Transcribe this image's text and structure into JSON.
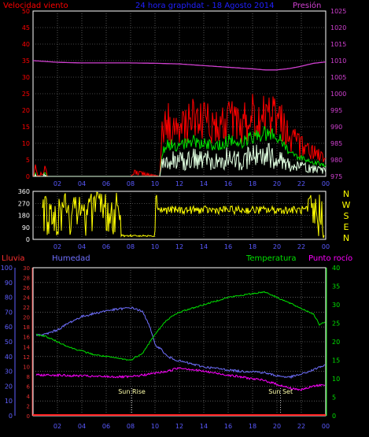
{
  "header": {
    "left_title": "Velocidad viento",
    "center_title": "24 hora graphdat - 18 Agosto 2014",
    "right_title": "Presión"
  },
  "colors": {
    "background": "#000000",
    "grid": "#8a8a8a",
    "frame": "#ffffff",
    "wind": "#ff0000",
    "gust_green": "#00e000",
    "wind_low": "#e0ffe0",
    "pressure": "#d040d0",
    "direction": "#ffff00",
    "humidity": "#7070ff",
    "temperature": "#00e000",
    "dewpoint": "#ff00ff",
    "rain": "#ff2020",
    "rain_axis": "#e03030",
    "humidity_axis": "#6060ff",
    "temp_axis": "#00e000",
    "sun_label": "#ffffaa"
  },
  "chart_data": [
    {
      "type": "line",
      "name": "wind-pressure",
      "title": "24 hora graphdat - 18 Agosto 2014",
      "ylabel_left": "Velocidad viento",
      "ylabel_right": "Presión",
      "x_ticks": [
        "02",
        "04",
        "06",
        "08",
        "10",
        "12",
        "14",
        "16",
        "18",
        "20",
        "22",
        "00"
      ],
      "y_left_ticks": [
        0,
        5,
        10,
        15,
        20,
        25,
        30,
        35,
        40,
        45,
        50
      ],
      "ylim_left": [
        0,
        50
      ],
      "y_right_ticks": [
        975,
        980,
        985,
        990,
        995,
        1000,
        1005,
        1010,
        1015,
        1020,
        1025
      ],
      "ylim_right": [
        975,
        1025
      ],
      "xlim": [
        0,
        24
      ],
      "pressure_series": {
        "x": [
          0,
          2,
          4,
          6,
          8,
          10,
          12,
          14,
          16,
          18,
          19,
          20,
          21,
          22,
          23,
          24
        ],
        "y": [
          1010,
          1009.5,
          1009.3,
          1009.3,
          1009.3,
          1009.2,
          1009,
          1008.5,
          1008,
          1007.5,
          1007.2,
          1007.2,
          1007.6,
          1008.3,
          1009.2,
          1009.6
        ]
      },
      "wind_note": "Wind data shown as noisy traces: near 0 from 00-10h except small spikes at ~00.2h, ~01h and ~08h; from ~10.5h to 24h gusts oscillating mostly 10-20 with peaks ~26",
      "wind_envelope": {
        "x": [
          0,
          0.2,
          0.4,
          1,
          1.2,
          8,
          8.2,
          10.4,
          10.6,
          11,
          12,
          13,
          14,
          15,
          16,
          17,
          18,
          19,
          20,
          21,
          22,
          23,
          24
        ],
        "gust": [
          0,
          3,
          0,
          3,
          0,
          0,
          2,
          0,
          17,
          18,
          16,
          19,
          18,
          17,
          19,
          17,
          20,
          21,
          22,
          14,
          10,
          8,
          6
        ],
        "avg": [
          0,
          1,
          0,
          1,
          0,
          0,
          1,
          0,
          7,
          9,
          8,
          10,
          9,
          8,
          10,
          9,
          11,
          12,
          11,
          7,
          5,
          4,
          3
        ]
      },
      "grid": true
    },
    {
      "type": "scatter",
      "name": "wind-direction",
      "y_left_ticks": [
        0,
        90,
        180,
        270,
        360
      ],
      "ylim": [
        0,
        360
      ],
      "right_labels": [
        "N",
        "W",
        "S",
        "E",
        "N"
      ],
      "x_ticks": [
        "02",
        "04",
        "06",
        "08",
        "10",
        "12",
        "14",
        "16",
        "18",
        "20",
        "22",
        "00"
      ],
      "grid": true
    },
    {
      "type": "line",
      "name": "humidity-temperature",
      "labels": {
        "rain": "Lluvia",
        "humidity": "Humedad",
        "temperature": "Temperatura",
        "dewpoint": "Punto rocío",
        "sunrise": "Sun Rise",
        "sunset": "Sun Set"
      },
      "humidity_ticks": [
        0,
        10,
        20,
        30,
        40,
        50,
        60,
        70,
        80,
        90,
        100
      ],
      "ylim_humidity": [
        0,
        100
      ],
      "rain_ticks": [
        0,
        2,
        4,
        6,
        8,
        10,
        12,
        14,
        16,
        18,
        20,
        22,
        24,
        26,
        28,
        30
      ],
      "ylim_rain": [
        0,
        30
      ],
      "temp_ticks": [
        0,
        5,
        10,
        15,
        20,
        25,
        30,
        35,
        40
      ],
      "ylim_temp": [
        0,
        40
      ],
      "x_ticks": [
        "02",
        "04",
        "06",
        "08",
        "10",
        "12",
        "14",
        "16",
        "18",
        "20",
        "22",
        "00"
      ],
      "xlim": [
        0,
        24
      ],
      "sunrise_hour": 8.1,
      "sunset_hour": 20.3,
      "humidity": {
        "x": [
          0,
          1,
          2,
          3,
          4,
          5,
          6,
          7,
          8,
          8.5,
          9,
          9.5,
          10,
          10.5,
          11,
          12,
          13,
          14,
          15,
          16,
          17,
          18,
          19,
          20,
          21,
          22,
          23,
          23.5,
          24
        ],
        "y": [
          54,
          55,
          58,
          63,
          67,
          69,
          71,
          72,
          73,
          72,
          70,
          62,
          48,
          45,
          40,
          37,
          35,
          33,
          32,
          31,
          30,
          30,
          29,
          27,
          26,
          28,
          31,
          33,
          34
        ]
      },
      "temperature": {
        "x": [
          0,
          1,
          2,
          3,
          4,
          5,
          6,
          7,
          8,
          9,
          10,
          11,
          12,
          13,
          14,
          15,
          16,
          17,
          18,
          19,
          20,
          21,
          22,
          23,
          23.5,
          24
        ],
        "y": [
          22,
          21.5,
          20,
          18.5,
          17.5,
          16.5,
          16,
          15.5,
          15,
          17,
          22,
          26,
          28,
          29,
          30,
          31,
          32,
          32.5,
          33,
          33.5,
          32,
          30.5,
          29,
          27.5,
          24.5,
          25.5
        ]
      },
      "dewpoint": {
        "x": [
          0,
          1,
          2,
          3,
          4,
          5,
          6,
          7,
          8,
          9,
          10,
          11,
          12,
          13,
          14,
          15,
          16,
          17,
          18,
          19,
          20,
          21,
          22,
          23,
          24
        ],
        "y": [
          11,
          11,
          11,
          10.8,
          10.8,
          10.6,
          10.6,
          10.5,
          10.5,
          11,
          11.5,
          12,
          13,
          12.5,
          12,
          11.5,
          11,
          10.5,
          10,
          9.5,
          8.5,
          7.5,
          7,
          8,
          8.5
        ]
      },
      "rain": {
        "x": [
          0,
          24
        ],
        "y": [
          0,
          0
        ]
      },
      "grid": true
    }
  ]
}
